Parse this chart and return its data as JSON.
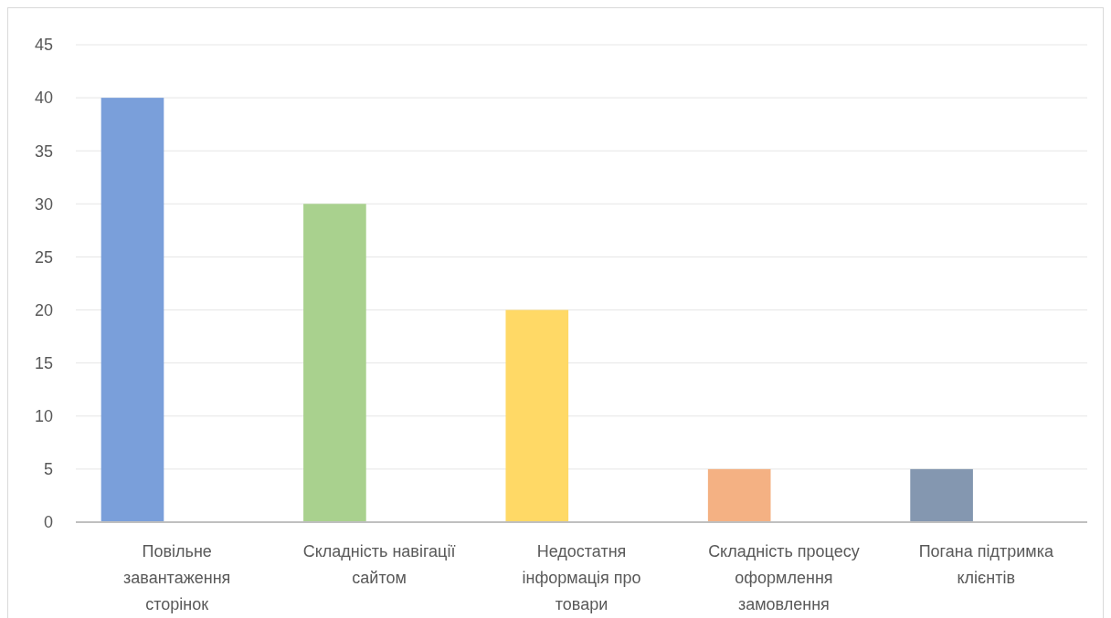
{
  "chart_data": {
    "type": "bar",
    "categories": [
      "Повільне завантаження сторінок",
      "Складність навігації сайтом",
      "Недостатня інформація про товари",
      "Складність процесу оформлення замовлення",
      "Погана підтримка клієнтів"
    ],
    "values": [
      40,
      30,
      20,
      5,
      5
    ],
    "colors": [
      "#7a9fda",
      "#a9d18e",
      "#ffd966",
      "#f4b183",
      "#8497b0"
    ],
    "ylim": [
      0,
      45
    ],
    "yticks": [
      0,
      5,
      10,
      15,
      20,
      25,
      30,
      35,
      40,
      45
    ],
    "grid": "y"
  }
}
